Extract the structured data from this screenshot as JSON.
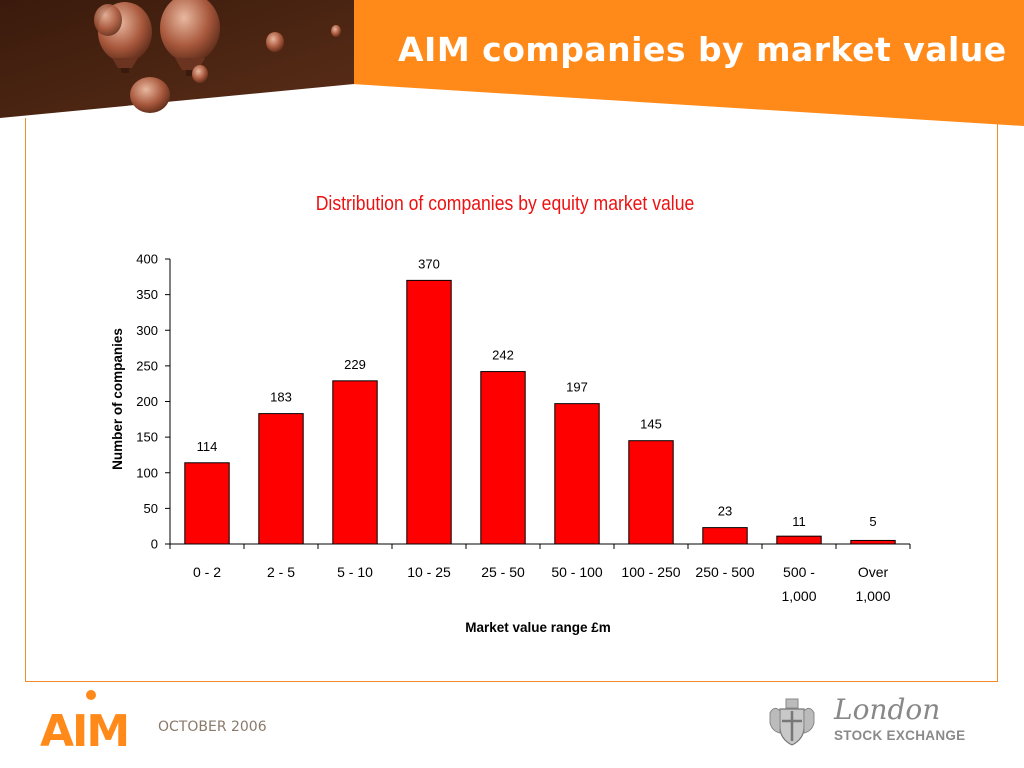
{
  "slide": {
    "title": "AIM companies by market value",
    "footer_date": "OCTOBER 2006",
    "aim_logo_text": "AIM",
    "lse_logo_line1": "London",
    "lse_logo_line2": "STOCK EXCHANGE"
  },
  "colors": {
    "header_orange": "#ff8a1a",
    "header_photo_brown": "#4a2414",
    "bar_fill": "#ff0000",
    "chart_title": "#ee1111",
    "frame_orange": "#f08a2a",
    "aim_orange": "#ff8a1a"
  },
  "icons": {
    "header_image": "hot-air-balloons-photo",
    "lse_crest": "coat-of-arms-icon"
  },
  "chart_data": {
    "type": "bar",
    "title": "Distribution of companies by equity market value",
    "xlabel": "Market value range £m",
    "ylabel": "Number of companies",
    "categories": [
      [
        "0 - 2"
      ],
      [
        "2 - 5"
      ],
      [
        "5 - 10"
      ],
      [
        "10 - 25"
      ],
      [
        "25 - 50"
      ],
      [
        "50 - 100"
      ],
      [
        "100 - 250"
      ],
      [
        "250 - 500"
      ],
      [
        "500 -",
        "1,000"
      ],
      [
        "Over",
        "1,000"
      ]
    ],
    "values": [
      114,
      183,
      229,
      370,
      242,
      197,
      145,
      23,
      11,
      5
    ],
    "data_labels": [
      "114",
      "183",
      "229",
      "370",
      "242",
      "197",
      "145",
      "23",
      "11",
      "5"
    ],
    "ylim": [
      0,
      400
    ],
    "yticks": [
      0,
      50,
      100,
      150,
      200,
      250,
      300,
      350,
      400
    ],
    "grid": false,
    "legend": "none"
  }
}
